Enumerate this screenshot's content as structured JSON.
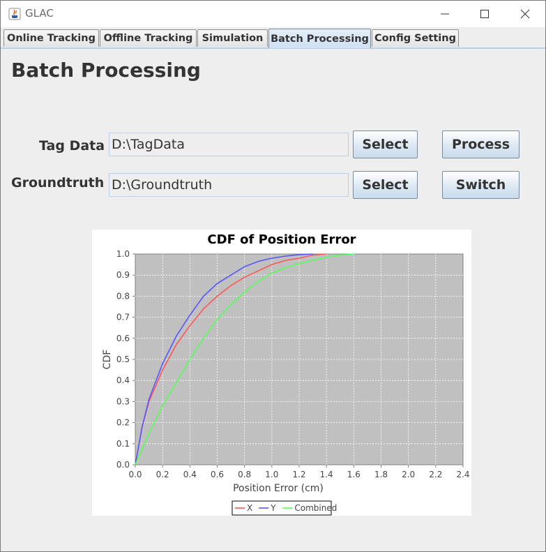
{
  "window": {
    "title": "GLAC",
    "accent": "#b8cfe5"
  },
  "tabs": [
    {
      "label": "Online Tracking",
      "active": false
    },
    {
      "label": "Offline Tracking",
      "active": false
    },
    {
      "label": "Simulation",
      "active": false
    },
    {
      "label": "Batch Processing",
      "active": true
    },
    {
      "label": "Config Setting",
      "active": false
    }
  ],
  "page": {
    "title": "Batch Processing"
  },
  "form": {
    "tag_label": "Tag Data",
    "tag_value": "D:\\TagData",
    "tag_select": "Select",
    "process_button": "Process",
    "gt_label": "Groundtruth",
    "gt_value": "D:\\Groundtruth",
    "gt_select": "Select",
    "switch_button": "Switch"
  },
  "icons": [
    "java-icon",
    "minimize-icon",
    "maximize-icon",
    "close-icon"
  ],
  "chart_data": {
    "type": "line",
    "title": "CDF of Position Error",
    "xlabel": "Position Error (cm)",
    "ylabel": "CDF",
    "xlim": [
      0,
      2.4
    ],
    "ylim": [
      0,
      1.0
    ],
    "xticks": [
      "0.0",
      "0.2",
      "0.4",
      "0.6",
      "0.8",
      "1.0",
      "1.2",
      "1.4",
      "1.6",
      "1.8",
      "2.0",
      "2.2",
      "2.4"
    ],
    "yticks": [
      "0.0",
      "0.1",
      "0.2",
      "0.3",
      "0.4",
      "0.5",
      "0.6",
      "0.7",
      "0.8",
      "0.9",
      "1.0"
    ],
    "grid": true,
    "legend_position": "bottom",
    "plot_background": "#c0c0c0",
    "series": [
      {
        "name": "X",
        "color": "#ff5555",
        "x": [
          0,
          0.05,
          0.1,
          0.2,
          0.3,
          0.4,
          0.5,
          0.6,
          0.7,
          0.8,
          0.9,
          1.0,
          1.1,
          1.2,
          1.3,
          1.4
        ],
        "y": [
          0,
          0.18,
          0.3,
          0.45,
          0.57,
          0.66,
          0.74,
          0.8,
          0.85,
          0.89,
          0.92,
          0.95,
          0.97,
          0.98,
          0.995,
          1.0
        ]
      },
      {
        "name": "Y",
        "color": "#5555ff",
        "x": [
          0,
          0.05,
          0.1,
          0.2,
          0.3,
          0.4,
          0.5,
          0.6,
          0.7,
          0.8,
          0.9,
          1.0,
          1.1,
          1.2,
          1.3
        ],
        "y": [
          0,
          0.18,
          0.31,
          0.48,
          0.61,
          0.71,
          0.8,
          0.86,
          0.9,
          0.94,
          0.965,
          0.98,
          0.99,
          0.997,
          1.0
        ]
      },
      {
        "name": "Combined",
        "color": "#55ff55",
        "x": [
          0,
          0.1,
          0.2,
          0.3,
          0.4,
          0.5,
          0.6,
          0.7,
          0.8,
          0.9,
          1.0,
          1.1,
          1.2,
          1.3,
          1.4,
          1.5,
          1.6
        ],
        "y": [
          0,
          0.15,
          0.28,
          0.39,
          0.5,
          0.6,
          0.69,
          0.76,
          0.82,
          0.87,
          0.91,
          0.935,
          0.955,
          0.97,
          0.985,
          0.995,
          1.0
        ]
      }
    ]
  }
}
